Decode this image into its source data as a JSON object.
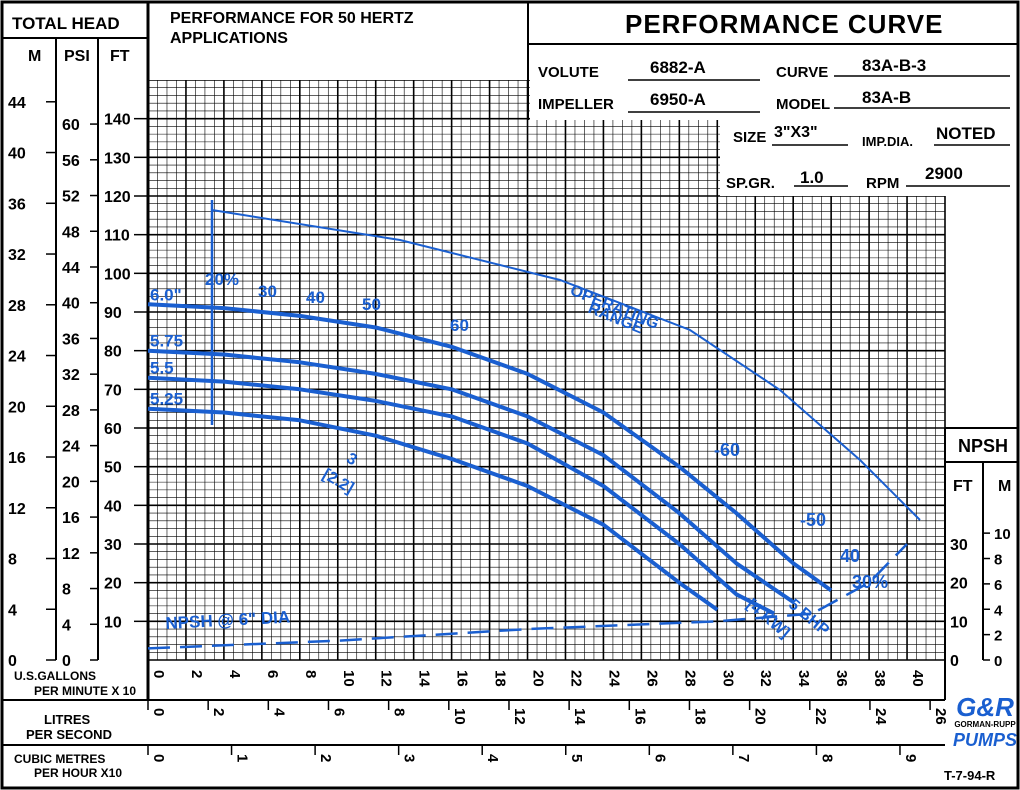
{
  "header": {
    "total_head": "TOTAL HEAD",
    "units": [
      "M",
      "PSI",
      "FT"
    ],
    "title_left_1": "PERFORMANCE FOR 50 HERTZ",
    "title_left_2": "APPLICATIONS",
    "title_right": "PERFORMANCE CURVE"
  },
  "specs": {
    "volute_label": "VOLUTE",
    "volute": "6882-A",
    "curve_label": "CURVE",
    "curve": "83A-B-3",
    "impeller_label": "IMPELLER",
    "impeller": "6950-A",
    "model_label": "MODEL",
    "model": "83A-B",
    "size_label": "SIZE",
    "size": "3\"X3\"",
    "impdia_label": "IMP.DIA.",
    "impdia": "NOTED",
    "spgr_label": "SP.GR.",
    "spgr": "1.0",
    "rpm_label": "RPM",
    "rpm": "2900"
  },
  "npsh_box": {
    "title": "NPSH",
    "units": [
      "FT",
      "M"
    ]
  },
  "footer": {
    "flow_gpm_label_1": "U.S.GALLONS",
    "flow_gpm_label_2": "PER MINUTE X 10",
    "lps_label_1": "LITRES",
    "lps_label_2": "PER SECOND",
    "cmh_label_1": "CUBIC METRES",
    "cmh_label_2": "PER HOUR X10",
    "logo_text": "G&R",
    "logo_sub": "GORMAN-RUPP",
    "logo_pumps": "PUMPS",
    "doc_code": "T-7-94-R"
  },
  "annotations": {
    "operating_range_1": "OPERATING",
    "operating_range_2": "RANGE",
    "npsh_note": "NPSH @ 6\" DIA",
    "eff_60": "-60",
    "eff_50": "-50",
    "eff_40": "40",
    "eff_30": "30%",
    "bhp_5": "5 BHP",
    "kw_4": "[4 KW]",
    "bhp_3": "3",
    "kw_22": "[2.2]"
  },
  "chart_data": {
    "type": "line",
    "xlabel": "U.S.GALLONS PER MINUTE X 10",
    "ylabel": "TOTAL HEAD",
    "xlim": [
      0,
      42
    ],
    "ylim": [
      0,
      150
    ],
    "x_ticks": [
      0,
      2,
      4,
      6,
      8,
      10,
      12,
      14,
      16,
      18,
      20,
      22,
      24,
      26,
      28,
      30,
      32,
      34,
      36,
      38,
      40
    ],
    "ft_ticks": [
      10,
      20,
      30,
      40,
      50,
      60,
      70,
      80,
      90,
      100,
      110,
      120,
      130,
      140
    ],
    "psi_ticks": [
      0,
      4,
      8,
      12,
      16,
      20,
      24,
      28,
      32,
      36,
      40,
      44,
      48,
      52,
      56,
      60
    ],
    "m_ticks": [
      0,
      4,
      8,
      12,
      16,
      20,
      24,
      28,
      32,
      36,
      40,
      44
    ],
    "lps_ticks": [
      0,
      2,
      4,
      6,
      8,
      10,
      12,
      14,
      16,
      18,
      20,
      22,
      24,
      26
    ],
    "cmh_ticks": [
      0,
      1,
      2,
      3,
      4,
      5,
      6,
      7,
      8,
      9
    ],
    "npsh_ft_ticks": [
      0,
      10,
      20,
      30
    ],
    "npsh_m_ticks": [
      0,
      2,
      4,
      6,
      8,
      10
    ],
    "series": [
      {
        "name": "6.0\"",
        "x": [
          0,
          4,
          8,
          12,
          16,
          20,
          24,
          28,
          31,
          34,
          36
        ],
        "y": [
          92,
          91,
          89,
          86,
          81,
          74,
          64,
          50,
          38,
          25,
          18
        ]
      },
      {
        "name": "5.75",
        "x": [
          0,
          4,
          8,
          12,
          16,
          20,
          24,
          28,
          31,
          34
        ],
        "y": [
          80,
          79,
          77,
          74,
          70,
          63,
          53,
          38,
          25,
          15
        ]
      },
      {
        "name": "5.5",
        "x": [
          0,
          4,
          8,
          12,
          16,
          20,
          24,
          28,
          31,
          33
        ],
        "y": [
          73,
          72,
          70,
          67,
          63,
          56,
          45,
          30,
          17,
          12
        ]
      },
      {
        "name": "5.25",
        "x": [
          0,
          4,
          8,
          12,
          16,
          20,
          24,
          28,
          30
        ],
        "y": [
          65,
          64,
          62,
          58,
          52,
          45,
          35,
          20,
          13
        ]
      },
      {
        "name": "NPSH @ 6\" DIA",
        "x": [
          0,
          10,
          20,
          30,
          35,
          38,
          40
        ],
        "y": [
          3,
          5,
          8,
          10,
          12,
          20,
          30
        ]
      }
    ],
    "efficiency_labels": [
      "20%",
      "30",
      "40",
      "50",
      "60"
    ],
    "bhp_labels": [
      "3 [2.2]",
      "5 BHP [4 KW]"
    ]
  }
}
